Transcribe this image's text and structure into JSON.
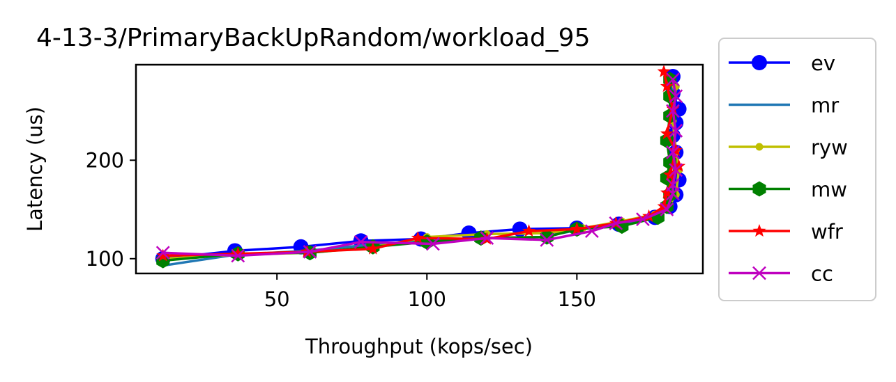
{
  "chart_data": {
    "type": "line",
    "title": "4-13-3/PrimaryBackUpRandom/workload_95",
    "xlabel": "Throughput (kops/sec)",
    "ylabel": "Latency (us)",
    "xlim": [
      3,
      192
    ],
    "ylim": [
      85,
      297
    ],
    "xticks": [
      50,
      100,
      150
    ],
    "yticks": [
      100,
      200
    ],
    "legend_position": "outside-right",
    "grid": false,
    "series": [
      {
        "name": "ev",
        "color": "#0000ff",
        "marker": "circle",
        "x": [
          12,
          36,
          58,
          78,
          98,
          114,
          131,
          150,
          164,
          176,
          181,
          183,
          184,
          183,
          182,
          183,
          184,
          182,
          182
        ],
        "y": [
          100,
          108,
          112,
          118,
          120,
          126,
          130,
          131,
          135,
          142,
          153,
          165,
          180,
          208,
          225,
          238,
          252,
          268,
          285
        ]
      },
      {
        "name": "mr",
        "color": "#1f77b4",
        "marker": "none",
        "x": [
          12,
          36,
          60,
          80,
          100,
          118,
          138,
          152,
          165,
          176,
          181,
          182,
          183,
          182,
          182
        ],
        "y": [
          93,
          104,
          108,
          114,
          118,
          121,
          122,
          130,
          136,
          142,
          155,
          180,
          210,
          240,
          280
        ]
      },
      {
        "name": "ryw",
        "color": "#bfbf00",
        "marker": "dot",
        "x": [
          12,
          37,
          60,
          81,
          100,
          120,
          140,
          152,
          165,
          176,
          181,
          183,
          184,
          183,
          182,
          183
        ],
        "y": [
          100,
          104,
          106,
          111,
          122,
          125,
          126,
          131,
          138,
          145,
          155,
          165,
          190,
          210,
          240,
          275
        ]
      },
      {
        "name": "mw",
        "color": "#008000",
        "marker": "hexagon",
        "x": [
          12,
          37,
          61,
          82,
          100,
          118,
          140,
          150,
          165,
          177,
          180,
          181,
          180,
          181,
          180,
          181,
          181,
          181
        ],
        "y": [
          98,
          105,
          106,
          112,
          117,
          121,
          122,
          130,
          133,
          142,
          153,
          165,
          182,
          198,
          220,
          245,
          265,
          282
        ]
      },
      {
        "name": "wfr",
        "color": "#ff0000",
        "marker": "star",
        "x": [
          12,
          37,
          60,
          82,
          97,
          120,
          134,
          150,
          163,
          174,
          179,
          180,
          184,
          181,
          183,
          180,
          182,
          180,
          179
        ],
        "y": [
          103,
          105,
          107,
          110,
          121,
          120,
          128,
          130,
          136,
          143,
          153,
          167,
          194,
          185,
          210,
          227,
          252,
          275,
          290
        ]
      },
      {
        "name": "cc",
        "color": "#bf00bf",
        "marker": "x",
        "x": [
          12,
          37,
          61,
          78,
          102,
          120,
          140,
          155,
          163,
          172,
          180,
          182,
          182,
          183,
          182,
          183,
          182,
          183,
          182
        ],
        "y": [
          106,
          103,
          107,
          117,
          115,
          121,
          119,
          128,
          136,
          140,
          150,
          166,
          175,
          190,
          208,
          230,
          250,
          265,
          282
        ]
      }
    ]
  }
}
